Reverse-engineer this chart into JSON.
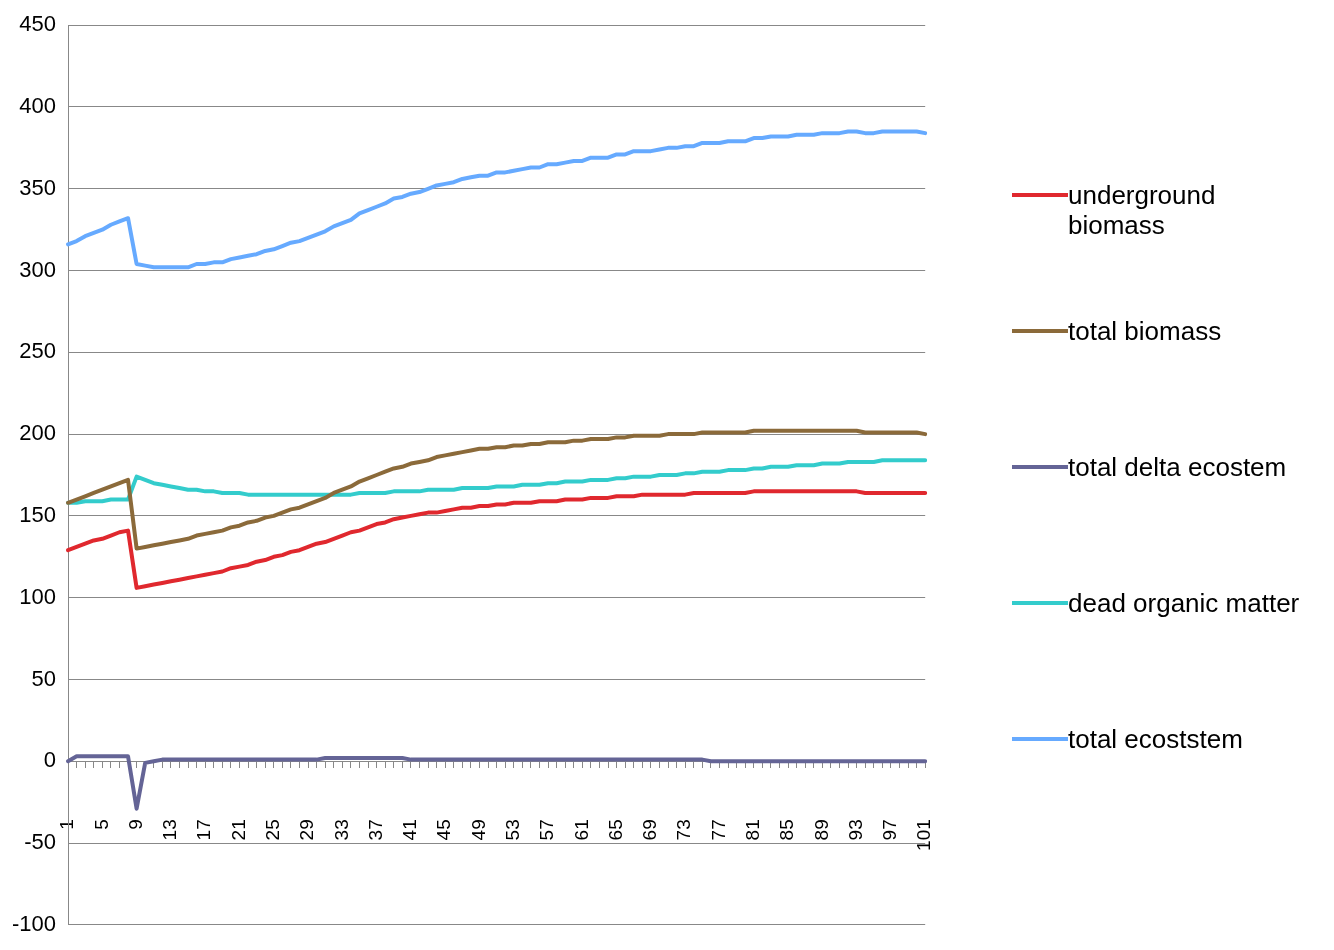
{
  "chart_data": {
    "type": "line",
    "categories": [
      "1",
      null,
      null,
      null,
      "5",
      null,
      null,
      null,
      "9",
      null,
      null,
      null,
      "13",
      null,
      null,
      null,
      "17",
      null,
      null,
      null,
      "21",
      null,
      null,
      null,
      "25",
      null,
      null,
      null,
      "29",
      null,
      null,
      null,
      "33",
      null,
      null,
      null,
      "37",
      null,
      null,
      null,
      "41",
      null,
      null,
      null,
      "45",
      null,
      null,
      null,
      "49",
      null,
      null,
      null,
      "53",
      null,
      null,
      null,
      "57",
      null,
      null,
      null,
      "61",
      null,
      null,
      null,
      "65",
      null,
      null,
      null,
      "69",
      null,
      null,
      null,
      "73",
      null,
      null,
      null,
      "77",
      null,
      null,
      null,
      "81",
      null,
      null,
      null,
      "85",
      null,
      null,
      null,
      "89",
      null,
      null,
      null,
      "93",
      null,
      null,
      null,
      "97",
      null,
      null,
      null,
      "101"
    ],
    "series": [
      {
        "name": "underground biomass",
        "color": "#e0282e",
        "values": [
          129,
          131,
          133,
          135,
          136,
          138,
          140,
          141,
          106,
          107,
          108,
          109,
          110,
          111,
          112,
          113,
          114,
          115,
          116,
          118,
          119,
          120,
          122,
          123,
          125,
          126,
          128,
          129,
          131,
          133,
          134,
          136,
          138,
          140,
          141,
          143,
          145,
          146,
          148,
          149,
          150,
          151,
          152,
          152,
          153,
          154,
          155,
          155,
          156,
          156,
          157,
          157,
          158,
          158,
          158,
          159,
          159,
          159,
          160,
          160,
          160,
          161,
          161,
          161,
          162,
          162,
          162,
          163,
          163,
          163,
          163,
          163,
          163,
          164,
          164,
          164,
          164,
          164,
          164,
          164,
          165,
          165,
          165,
          165,
          165,
          165,
          165,
          165,
          165,
          165,
          165,
          165,
          165,
          164,
          164,
          164,
          164,
          164,
          164,
          164,
          164
        ]
      },
      {
        "name": "total biomass",
        "color": "#8b6a3a",
        "values": [
          158,
          160,
          162,
          164,
          166,
          168,
          170,
          172,
          130,
          131,
          132,
          133,
          134,
          135,
          136,
          138,
          139,
          140,
          141,
          143,
          144,
          146,
          147,
          149,
          150,
          152,
          154,
          155,
          157,
          159,
          161,
          164,
          166,
          168,
          171,
          173,
          175,
          177,
          179,
          180,
          182,
          183,
          184,
          186,
          187,
          188,
          189,
          190,
          191,
          191,
          192,
          192,
          193,
          193,
          194,
          194,
          195,
          195,
          195,
          196,
          196,
          197,
          197,
          197,
          198,
          198,
          199,
          199,
          199,
          199,
          200,
          200,
          200,
          200,
          201,
          201,
          201,
          201,
          201,
          201,
          202,
          202,
          202,
          202,
          202,
          202,
          202,
          202,
          202,
          202,
          202,
          202,
          202,
          201,
          201,
          201,
          201,
          201,
          201,
          201,
          200
        ]
      },
      {
        "name": "total delta ecostem",
        "color": "#646496",
        "values": [
          0,
          3,
          3,
          3,
          3,
          3,
          3,
          3,
          -29,
          -1,
          0,
          1,
          1,
          1,
          1,
          1,
          1,
          1,
          1,
          1,
          1,
          1,
          1,
          1,
          1,
          1,
          1,
          1,
          1,
          1,
          2,
          2,
          2,
          2,
          2,
          2,
          2,
          2,
          2,
          2,
          1,
          1,
          1,
          1,
          1,
          1,
          1,
          1,
          1,
          1,
          1,
          1,
          1,
          1,
          1,
          1,
          1,
          1,
          1,
          1,
          1,
          1,
          1,
          1,
          1,
          1,
          1,
          1,
          1,
          1,
          1,
          1,
          1,
          1,
          1,
          0,
          0,
          0,
          0,
          0,
          0,
          0,
          0,
          0,
          0,
          0,
          0,
          0,
          0,
          0,
          0,
          0,
          0,
          0,
          0,
          0,
          0,
          0,
          0,
          0,
          0
        ]
      },
      {
        "name": "dead organic matter",
        "color": "#33cccc",
        "values": [
          158,
          158,
          159,
          159,
          159,
          160,
          160,
          160,
          174,
          172,
          170,
          169,
          168,
          167,
          166,
          166,
          165,
          165,
          164,
          164,
          164,
          163,
          163,
          163,
          163,
          163,
          163,
          163,
          163,
          163,
          163,
          163,
          163,
          163,
          164,
          164,
          164,
          164,
          165,
          165,
          165,
          165,
          166,
          166,
          166,
          166,
          167,
          167,
          167,
          167,
          168,
          168,
          168,
          169,
          169,
          169,
          170,
          170,
          171,
          171,
          171,
          172,
          172,
          172,
          173,
          173,
          174,
          174,
          174,
          175,
          175,
          175,
          176,
          176,
          177,
          177,
          177,
          178,
          178,
          178,
          179,
          179,
          180,
          180,
          180,
          181,
          181,
          181,
          182,
          182,
          182,
          183,
          183,
          183,
          183,
          184,
          184,
          184,
          184,
          184,
          184
        ]
      },
      {
        "name": "total ecoststem",
        "color": "#66aaff",
        "values": [
          316,
          318,
          321,
          323,
          325,
          328,
          330,
          332,
          304,
          303,
          302,
          302,
          302,
          302,
          302,
          304,
          304,
          305,
          305,
          307,
          308,
          309,
          310,
          312,
          313,
          315,
          317,
          318,
          320,
          322,
          324,
          327,
          329,
          331,
          335,
          337,
          339,
          341,
          344,
          345,
          347,
          348,
          350,
          352,
          353,
          354,
          356,
          357,
          358,
          358,
          360,
          360,
          361,
          362,
          363,
          363,
          365,
          365,
          366,
          367,
          367,
          369,
          369,
          369,
          371,
          371,
          373,
          373,
          373,
          374,
          375,
          375,
          376,
          376,
          378,
          378,
          378,
          379,
          379,
          379,
          381,
          381,
          382,
          382,
          382,
          383,
          383,
          383,
          384,
          384,
          384,
          385,
          385,
          384,
          384,
          385,
          385,
          385,
          385,
          385,
          384
        ]
      }
    ],
    "ylim": [
      -100,
      450
    ],
    "yticks": [
      -100,
      -50,
      0,
      50,
      100,
      150,
      200,
      250,
      300,
      350,
      400,
      450
    ],
    "grid": "y",
    "legend": "right",
    "marker": "none",
    "line_style": "solid"
  }
}
